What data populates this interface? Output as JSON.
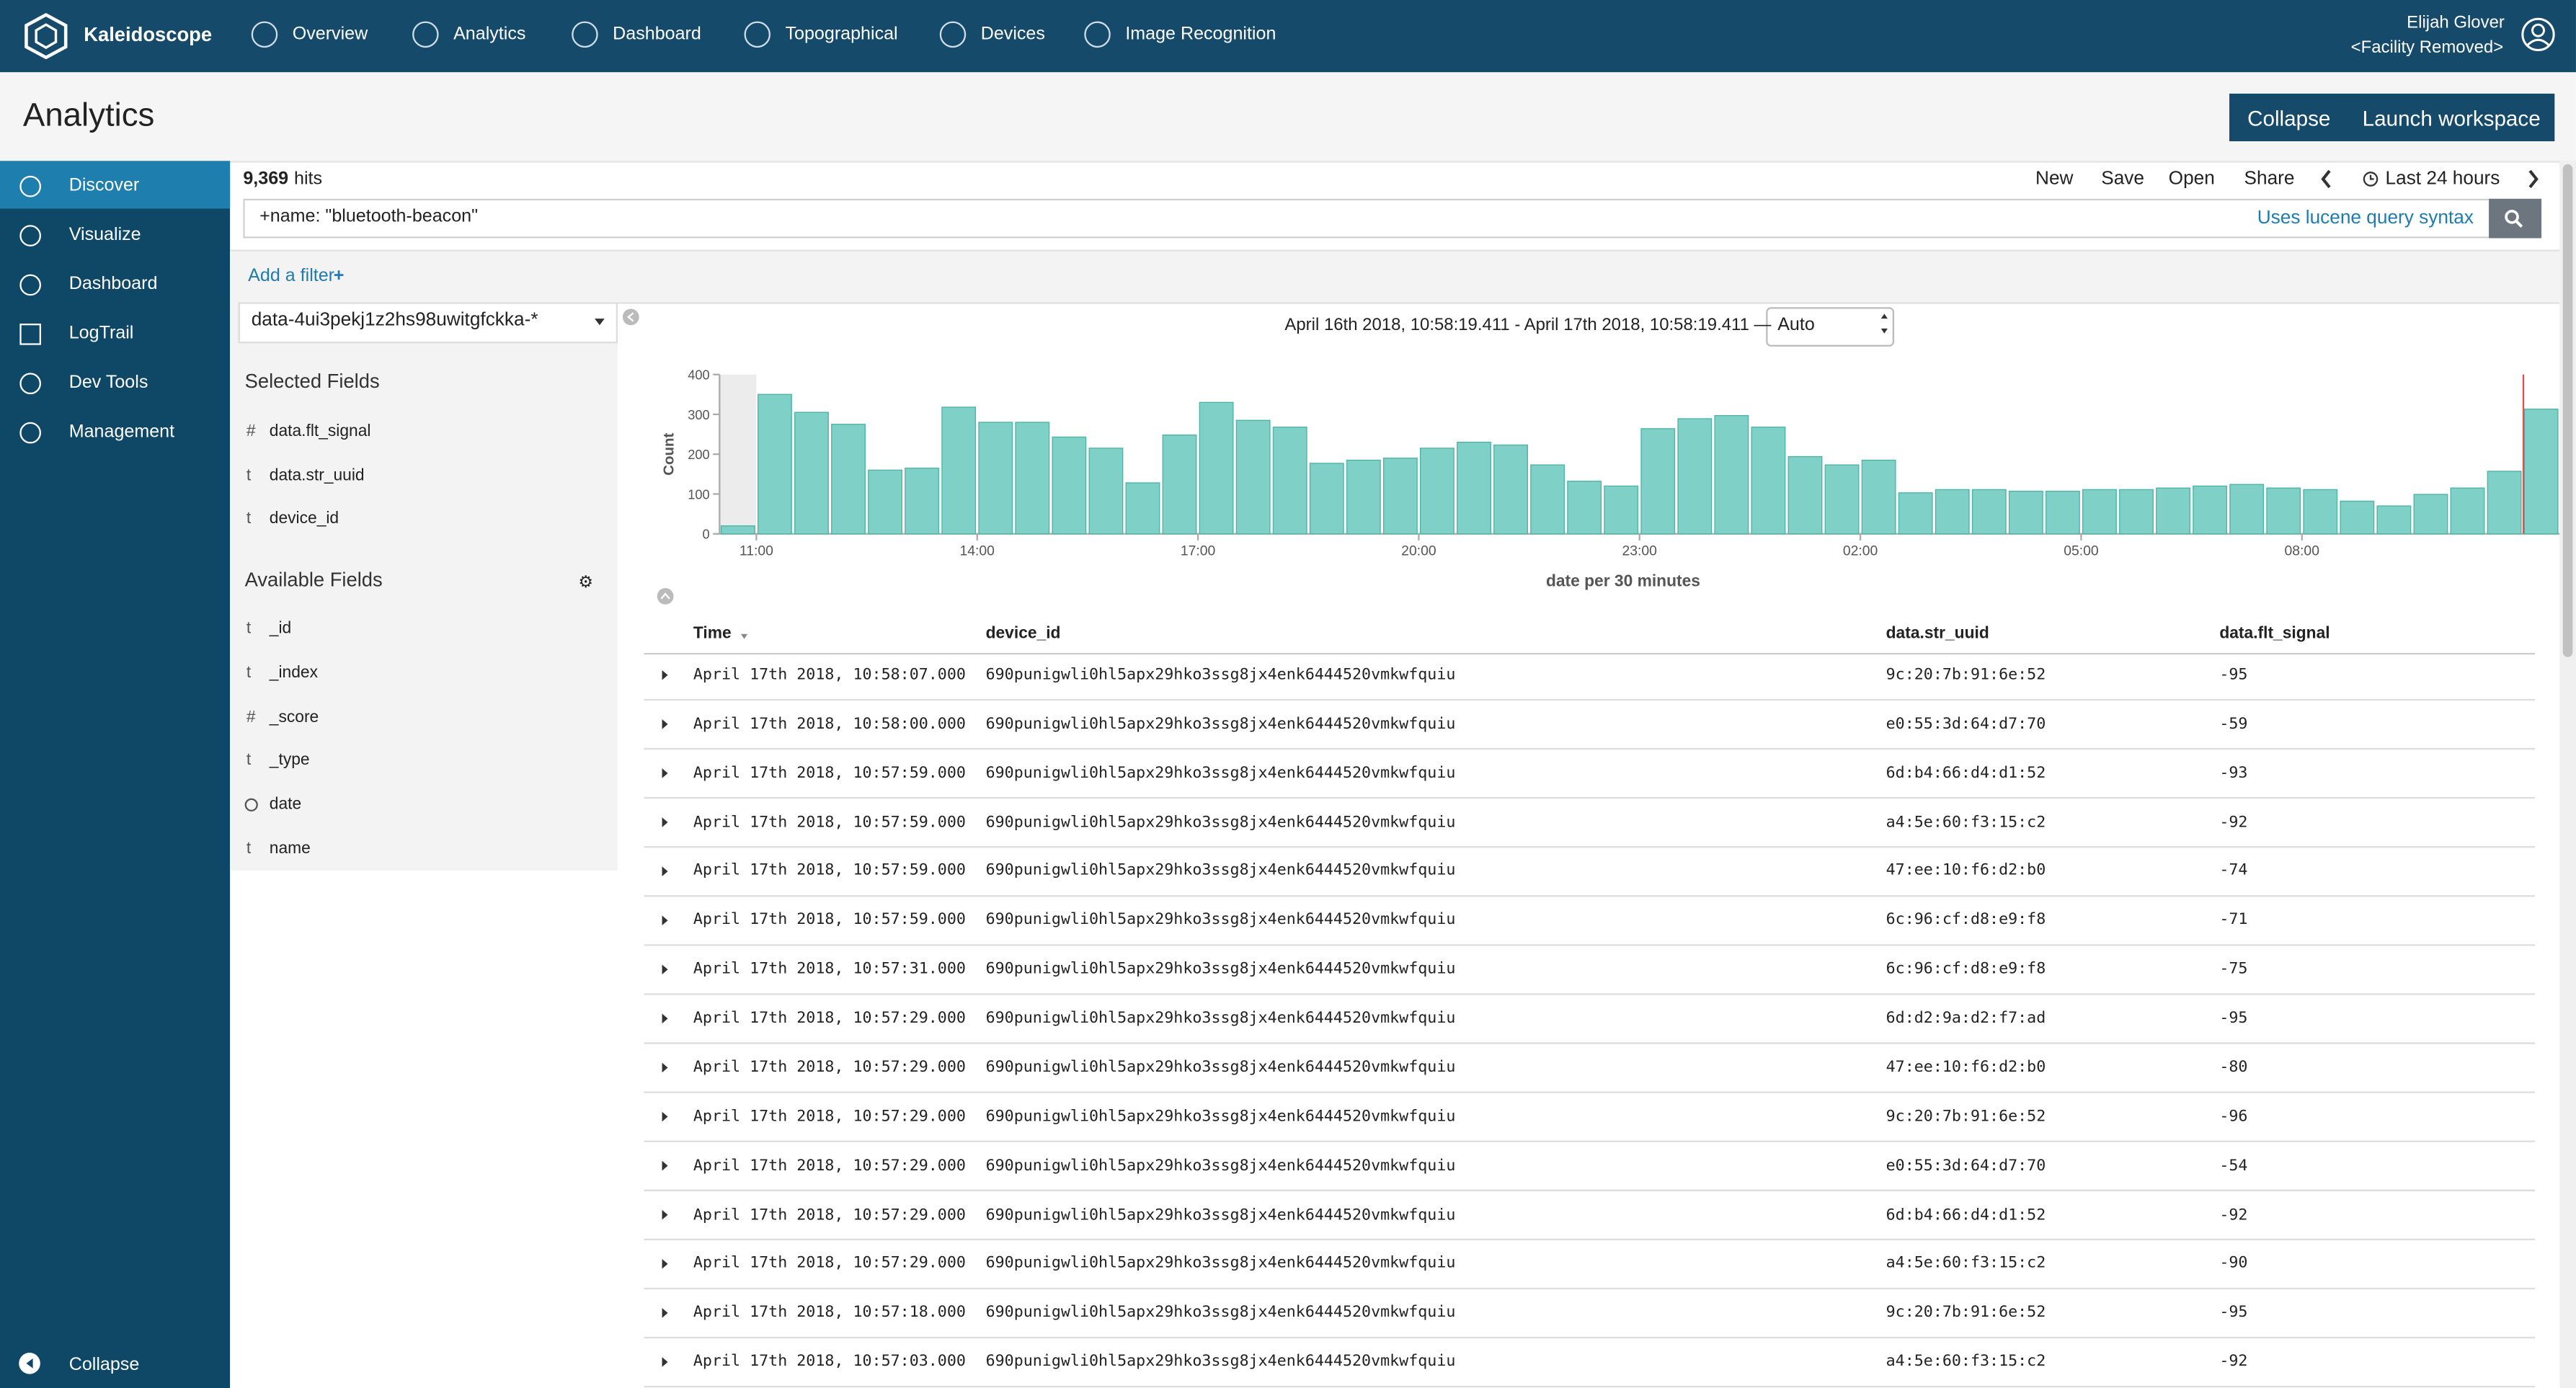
{
  "topnav": {
    "brand": "Kaleidoscope",
    "items": [
      "Overview",
      "Analytics",
      "Dashboard",
      "Topographical",
      "Devices",
      "Image Recognition"
    ],
    "user": {
      "name": "Elijah Glover",
      "facility": "<Facility Removed>"
    }
  },
  "page_title": "Analytics",
  "header_buttons": [
    "Collapse",
    "Launch workspace"
  ],
  "sidebar": {
    "items": [
      "Discover",
      "Visualize",
      "Dashboard",
      "LogTrail",
      "Dev Tools",
      "Management"
    ],
    "collapse": "Collapse"
  },
  "discover": {
    "hits_count": "9,369",
    "hits_label": "hits",
    "menu": [
      "New",
      "Save",
      "Open",
      "Share"
    ],
    "time_range": "Last 24 hours",
    "query": "+name: \"bluetooth-beacon\"",
    "query_hint": "Uses lucene query syntax",
    "add_filter": "Add a filter",
    "index_pattern": "data-4ui3pekj1z2hs98uwitgfckka-*",
    "selected_fields_title": "Selected Fields",
    "selected_fields": [
      {
        "type": "#",
        "name": "data.flt_signal"
      },
      {
        "type": "t",
        "name": "data.str_uuid"
      },
      {
        "type": "t",
        "name": "device_id"
      }
    ],
    "available_fields_title": "Available Fields",
    "available_fields": [
      {
        "type": "t",
        "name": "_id"
      },
      {
        "type": "t",
        "name": "_index"
      },
      {
        "type": "#",
        "name": "_score"
      },
      {
        "type": "t",
        "name": "_type"
      },
      {
        "type": null,
        "name": "date"
      },
      {
        "type": "t",
        "name": "name"
      }
    ]
  },
  "histogram": {
    "type": "bar",
    "date_range": "April 16th 2018, 10:58:19.411 - April 17th 2018, 10:58:19.411 —",
    "interval": "Auto",
    "y_label": "Count",
    "x_label": "date per 30 minutes",
    "categories": [
      null,
      "11:00",
      null,
      null,
      null,
      null,
      null,
      "14:00",
      null,
      null,
      null,
      null,
      null,
      "17:00",
      null,
      null,
      null,
      null,
      null,
      "20:00",
      null,
      null,
      null,
      null,
      null,
      "23:00",
      null,
      null,
      null,
      null,
      null,
      "02:00",
      null,
      null,
      null,
      null,
      null,
      "05:00",
      null,
      null,
      null,
      null,
      null,
      "08:00",
      null,
      null,
      null,
      null,
      null,
      null
    ],
    "values": [
      20,
      350,
      305,
      275,
      160,
      165,
      318,
      280,
      280,
      243,
      215,
      128,
      248,
      330,
      285,
      268,
      177,
      185,
      190,
      215,
      230,
      223,
      173,
      132,
      120,
      264,
      289,
      297,
      268,
      194,
      173,
      185,
      103,
      111,
      111,
      107,
      107,
      111,
      111,
      115,
      120,
      124,
      115,
      111,
      82,
      70,
      99,
      115,
      157,
      313
    ],
    "ylim": [
      0,
      400
    ],
    "yticks": [
      0,
      100,
      200,
      300,
      400
    ],
    "color": "#7fd1c7"
  },
  "table": {
    "columns": [
      "Time",
      "device_id",
      "data.str_uuid",
      "data.flt_signal"
    ],
    "rows": [
      [
        "April 17th 2018, 10:58:07.000",
        "690punigwli0hl5apx29hko3ssg8jx4enk6444520vmkwfquiu",
        "9c:20:7b:91:6e:52",
        -95
      ],
      [
        "April 17th 2018, 10:58:00.000",
        "690punigwli0hl5apx29hko3ssg8jx4enk6444520vmkwfquiu",
        "e0:55:3d:64:d7:70",
        -59
      ],
      [
        "April 17th 2018, 10:57:59.000",
        "690punigwli0hl5apx29hko3ssg8jx4enk6444520vmkwfquiu",
        "6d:b4:66:d4:d1:52",
        -93
      ],
      [
        "April 17th 2018, 10:57:59.000",
        "690punigwli0hl5apx29hko3ssg8jx4enk6444520vmkwfquiu",
        "a4:5e:60:f3:15:c2",
        -92
      ],
      [
        "April 17th 2018, 10:57:59.000",
        "690punigwli0hl5apx29hko3ssg8jx4enk6444520vmkwfquiu",
        "47:ee:10:f6:d2:b0",
        -74
      ],
      [
        "April 17th 2018, 10:57:59.000",
        "690punigwli0hl5apx29hko3ssg8jx4enk6444520vmkwfquiu",
        "6c:96:cf:d8:e9:f8",
        -71
      ],
      [
        "April 17th 2018, 10:57:31.000",
        "690punigwli0hl5apx29hko3ssg8jx4enk6444520vmkwfquiu",
        "6c:96:cf:d8:e9:f8",
        -75
      ],
      [
        "April 17th 2018, 10:57:29.000",
        "690punigwli0hl5apx29hko3ssg8jx4enk6444520vmkwfquiu",
        "6d:d2:9a:d2:f7:ad",
        -95
      ],
      [
        "April 17th 2018, 10:57:29.000",
        "690punigwli0hl5apx29hko3ssg8jx4enk6444520vmkwfquiu",
        "47:ee:10:f6:d2:b0",
        -80
      ],
      [
        "April 17th 2018, 10:57:29.000",
        "690punigwli0hl5apx29hko3ssg8jx4enk6444520vmkwfquiu",
        "9c:20:7b:91:6e:52",
        -96
      ],
      [
        "April 17th 2018, 10:57:29.000",
        "690punigwli0hl5apx29hko3ssg8jx4enk6444520vmkwfquiu",
        "e0:55:3d:64:d7:70",
        -54
      ],
      [
        "April 17th 2018, 10:57:29.000",
        "690punigwli0hl5apx29hko3ssg8jx4enk6444520vmkwfquiu",
        "6d:b4:66:d4:d1:52",
        -92
      ],
      [
        "April 17th 2018, 10:57:29.000",
        "690punigwli0hl5apx29hko3ssg8jx4enk6444520vmkwfquiu",
        "a4:5e:60:f3:15:c2",
        -90
      ],
      [
        "April 17th 2018, 10:57:18.000",
        "690punigwli0hl5apx29hko3ssg8jx4enk6444520vmkwfquiu",
        "9c:20:7b:91:6e:52",
        -95
      ],
      [
        "April 17th 2018, 10:57:03.000",
        "690punigwli0hl5apx29hko3ssg8jx4enk6444520vmkwfquiu",
        "a4:5e:60:f3:15:c2",
        -92
      ]
    ]
  }
}
